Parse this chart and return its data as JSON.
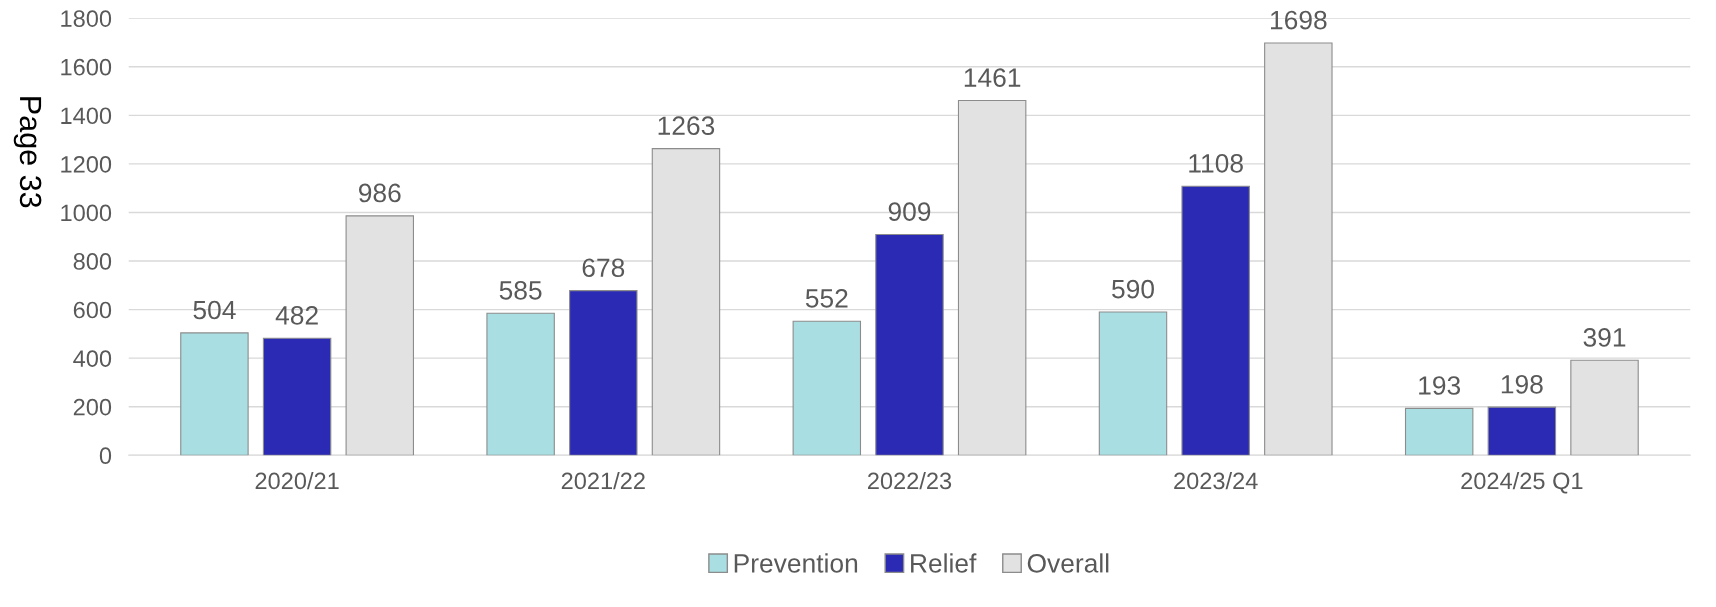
{
  "chart_data": {
    "type": "bar",
    "categories": [
      "2020/21",
      "2021/22",
      "2022/23",
      "2023/24",
      "2024/25 Q1"
    ],
    "series": [
      {
        "name": "Prevention",
        "color": "#a9dfe2",
        "values": [
          504,
          585,
          552,
          590,
          193
        ]
      },
      {
        "name": "Relief",
        "color": "#2a2ab4",
        "values": [
          482,
          678,
          909,
          1108,
          198
        ]
      },
      {
        "name": "Overall",
        "color": "#e2e2e2",
        "values": [
          986,
          1263,
          1461,
          1698,
          391
        ]
      }
    ],
    "ylim": [
      0,
      1800
    ],
    "yticks": [
      0,
      200,
      400,
      600,
      800,
      1000,
      1200,
      1400,
      1600,
      1800
    ],
    "grid": "y",
    "legend": "bottom",
    "data_labels": true,
    "annotations": [
      "Page 33"
    ]
  }
}
